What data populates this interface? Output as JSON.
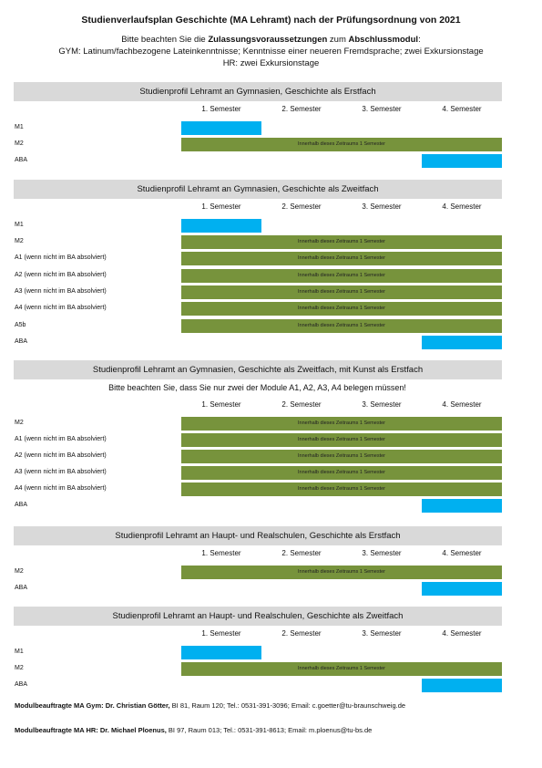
{
  "header": {
    "title": "Studienverlaufsplan Geschichte (MA Lehramt) nach der Prüfungsordnung von 2021",
    "notice_parts": [
      "Bitte beachten Sie die ",
      "Zulassungsvoraussetzungen",
      " zum ",
      "Abschlussmodul",
      ":"
    ],
    "lines": [
      "GYM: Latinum/fachbezogene Lateinkenntnisse; Kenntnisse einer neueren Fremdsprache; zwei Exkursionstage",
      "HR: zwei Exkursionstage"
    ]
  },
  "semesters": [
    "1. Semester",
    "2. Semester",
    "3. Semester",
    "4. Semester"
  ],
  "bar_text": "Innerhalb dieses Zeitraums 1 Semester",
  "sections": [
    {
      "title": "Studienprofil Lehramt an Gymnasien, Geschichte als Erstfach",
      "rows": [
        {
          "label": "M1",
          "span": [
            1,
            1
          ],
          "kind": "blue"
        },
        {
          "label": "M2",
          "span": [
            1,
            4
          ],
          "kind": "green"
        },
        {
          "label": "ABA",
          "span": [
            4,
            4
          ],
          "kind": "blue"
        }
      ]
    },
    {
      "title": "Studienprofil Lehramt an Gymnasien, Geschichte als Zweitfach",
      "rows": [
        {
          "label": "M1",
          "span": [
            1,
            1
          ],
          "kind": "blue"
        },
        {
          "label": "M2",
          "span": [
            1,
            4
          ],
          "kind": "green"
        },
        {
          "label": "A1 (wenn nicht im BA absolviert)",
          "span": [
            1,
            4
          ],
          "kind": "green"
        },
        {
          "label": "A2 (wenn nicht im BA absolviert)",
          "span": [
            1,
            4
          ],
          "kind": "green"
        },
        {
          "label": "A3 (wenn nicht im BA absolviert)",
          "span": [
            1,
            4
          ],
          "kind": "green"
        },
        {
          "label": "A4 (wenn nicht im BA absolviert)",
          "span": [
            1,
            4
          ],
          "kind": "green"
        },
        {
          "label": "A5b",
          "span": [
            1,
            4
          ],
          "kind": "green"
        },
        {
          "label": "ABA",
          "span": [
            4,
            4
          ],
          "kind": "blue"
        }
      ]
    },
    {
      "title": "Studienprofil Lehramt an Gymnasien, Geschichte als Zweitfach, mit Kunst als Erstfach",
      "note": "Bitte beachten Sie, dass Sie nur zwei der Module A1, A2, A3, A4 belegen müssen!",
      "rows": [
        {
          "label": "M2",
          "span": [
            1,
            4
          ],
          "kind": "green"
        },
        {
          "label": "A1 (wenn nicht im BA absolviert)",
          "span": [
            1,
            4
          ],
          "kind": "green"
        },
        {
          "label": "A2 (wenn nicht im BA absolviert)",
          "span": [
            1,
            4
          ],
          "kind": "green"
        },
        {
          "label": "A3 (wenn nicht im BA absolviert)",
          "span": [
            1,
            4
          ],
          "kind": "green"
        },
        {
          "label": "A4 (wenn nicht im BA absolviert)",
          "span": [
            1,
            4
          ],
          "kind": "green"
        },
        {
          "label": "ABA",
          "span": [
            4,
            4
          ],
          "kind": "blue"
        }
      ]
    },
    {
      "title": "Studienprofil Lehramt an Haupt- und Realschulen, Geschichte als Erstfach",
      "rows": [
        {
          "label": "M2",
          "span": [
            1,
            4
          ],
          "kind": "green"
        },
        {
          "label": "ABA",
          "span": [
            4,
            4
          ],
          "kind": "blue"
        }
      ]
    },
    {
      "title": "Studienprofil Lehramt an Haupt- und Realschulen, Geschichte als Zweitfach",
      "rows": [
        {
          "label": "M1",
          "span": [
            1,
            1
          ],
          "kind": "blue"
        },
        {
          "label": "M2",
          "span": [
            1,
            4
          ],
          "kind": "green"
        },
        {
          "label": "ABA",
          "span": [
            4,
            4
          ],
          "kind": "blue"
        }
      ]
    }
  ],
  "footer": [
    {
      "bold": "Modulbeauftragte MA Gym: Dr. Christian Götter,",
      "text": " BI 81, Raum 120; Tel.: 0531-391-3096; Email: c.goetter@tu-braunschweig.de"
    },
    {
      "bold": "Modulbeauftragte MA HR: Dr. Michael Ploenus,",
      "text": " BI 97, Raum 013; Tel.: 0531-391-8613; Email: m.ploenus@tu-bs.de"
    }
  ]
}
